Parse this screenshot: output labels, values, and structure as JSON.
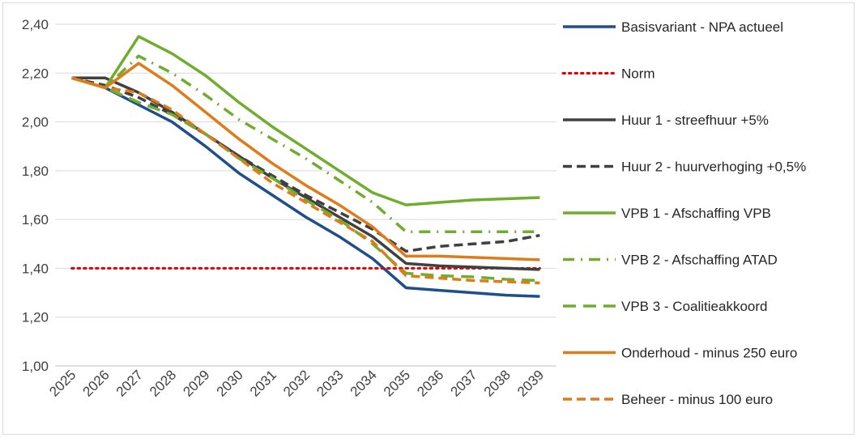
{
  "chart_data": {
    "type": "line",
    "title": "",
    "xlabel": "",
    "ylabel": "",
    "ylim": [
      1.0,
      2.4
    ],
    "y_ticks": [
      "2,40",
      "2,20",
      "2,00",
      "1,80",
      "1,60",
      "1,40",
      "1,20",
      "1,00"
    ],
    "y_tick_values": [
      2.4,
      2.2,
      2.0,
      1.8,
      1.6,
      1.4,
      1.2,
      1.0
    ],
    "categories": [
      "2025",
      "2026",
      "2027",
      "2028",
      "2029",
      "2030",
      "2031",
      "2032",
      "2033",
      "2034",
      "2035",
      "2036",
      "2037",
      "2038",
      "2039"
    ],
    "grid": true,
    "legend_position": "right",
    "series": [
      {
        "name": "Basisvariant - NPA actueel",
        "color": "#1f4e8c",
        "style": "solid",
        "values": [
          2.18,
          2.14,
          2.07,
          2.0,
          1.9,
          1.79,
          1.7,
          1.61,
          1.53,
          1.44,
          1.32,
          1.31,
          1.3,
          1.29,
          1.285
        ]
      },
      {
        "name": "Norm",
        "color": "#e00000",
        "style": "dotted",
        "values": [
          1.4,
          1.4,
          1.4,
          1.4,
          1.4,
          1.4,
          1.4,
          1.4,
          1.4,
          1.4,
          1.4,
          1.4,
          1.4,
          1.4,
          1.4
        ]
      },
      {
        "name": "Huur 1 - streefhuur +5%",
        "color": "#404040",
        "style": "solid",
        "values": [
          2.18,
          2.18,
          2.12,
          2.04,
          1.95,
          1.86,
          1.77,
          1.69,
          1.61,
          1.53,
          1.42,
          1.41,
          1.405,
          1.4,
          1.395
        ]
      },
      {
        "name": "Huur 2 - huurverhoging +0,5%",
        "color": "#404040",
        "style": "dashed",
        "values": [
          2.18,
          2.15,
          2.1,
          2.03,
          1.95,
          1.86,
          1.78,
          1.7,
          1.63,
          1.56,
          1.47,
          1.49,
          1.5,
          1.51,
          1.535
        ]
      },
      {
        "name": "VPB 1 - Afschaffing VPB",
        "color": "#70ad2f",
        "style": "solid",
        "values": [
          2.18,
          2.14,
          2.35,
          2.28,
          2.19,
          2.08,
          1.98,
          1.89,
          1.8,
          1.71,
          1.66,
          1.67,
          1.68,
          1.685,
          1.69
        ]
      },
      {
        "name": "VPB 2 - Afschaffing ATAD",
        "color": "#70ad2f",
        "style": "dashdot",
        "values": [
          2.18,
          2.14,
          2.27,
          2.2,
          2.11,
          2.01,
          1.93,
          1.85,
          1.76,
          1.67,
          1.55,
          1.55,
          1.55,
          1.55,
          1.55
        ]
      },
      {
        "name": "VPB 3 - Coalitieakkoord",
        "color": "#70ad2f",
        "style": "longdash",
        "values": [
          2.18,
          2.14,
          2.08,
          2.03,
          1.95,
          1.85,
          1.77,
          1.68,
          1.6,
          1.5,
          1.38,
          1.37,
          1.365,
          1.355,
          1.35
        ]
      },
      {
        "name": "Onderhoud - minus 250 euro",
        "color": "#e07b1a",
        "style": "solid",
        "values": [
          2.18,
          2.14,
          2.24,
          2.15,
          2.04,
          1.93,
          1.83,
          1.74,
          1.66,
          1.57,
          1.45,
          1.45,
          1.445,
          1.44,
          1.435
        ]
      },
      {
        "name": "Beheer - minus 100 euro",
        "color": "#e07b1a",
        "style": "dashed",
        "values": [
          2.18,
          2.14,
          2.12,
          2.05,
          1.95,
          1.85,
          1.75,
          1.67,
          1.59,
          1.51,
          1.37,
          1.36,
          1.35,
          1.345,
          1.34
        ]
      }
    ]
  }
}
